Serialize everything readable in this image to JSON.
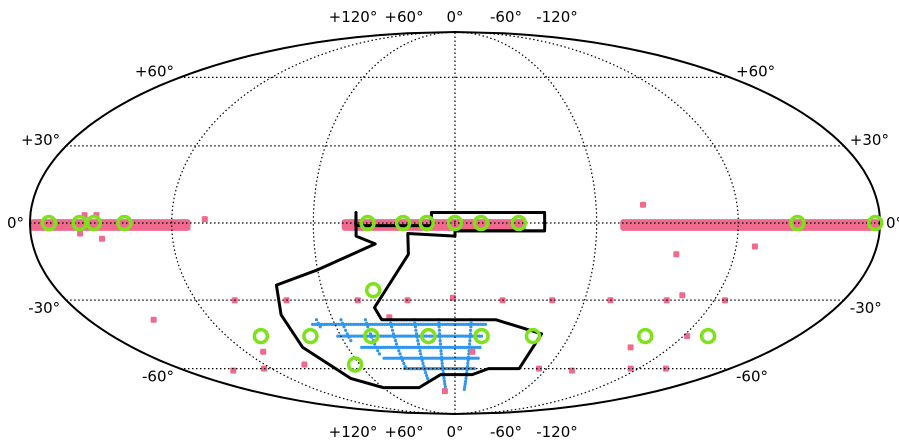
{
  "chart_data": {
    "type": "scatter",
    "projection": "mollweide",
    "grid": true,
    "colors": {
      "survey_a": "#f06a8e",
      "survey_b": "#2f97f0",
      "targets": "#7ee21a",
      "footprint": "#000000",
      "grid": "#000000",
      "background": "#ffffff"
    },
    "lon_ticks_top": [
      {
        "lon": 120,
        "label": "+120°"
      },
      {
        "lon": 60,
        "label": "+60°"
      },
      {
        "lon": 0,
        "label": "0°"
      },
      {
        "lon": -60,
        "label": "-60°"
      },
      {
        "lon": -120,
        "label": "-120°"
      }
    ],
    "lon_ticks_bottom": [
      {
        "lon": 120,
        "label": "+120°"
      },
      {
        "lon": 60,
        "label": "+60°"
      },
      {
        "lon": 0,
        "label": "0°"
      },
      {
        "lon": -60,
        "label": "-60°"
      },
      {
        "lon": -120,
        "label": "-120°"
      }
    ],
    "lat_ticks": [
      {
        "lat": 60,
        "left": "+60°",
        "right": "+60°"
      },
      {
        "lat": 30,
        "left": "+30°",
        "right": "+30°"
      },
      {
        "lat": 0,
        "left": "0°",
        "right": "0°"
      },
      {
        "lat": -30,
        "left": "-30°",
        "right": "-30°"
      },
      {
        "lat": -60,
        "left": "-60°",
        "right": "-60°"
      }
    ],
    "survey_a_band": [
      {
        "lon_from": 180,
        "lon_to": 112,
        "lat_from": -1.5,
        "lat_to": 1.5
      },
      {
        "lon_from": 48,
        "lon_to": -30,
        "lat_from": -1.5,
        "lat_to": 1.5
      },
      {
        "lon_from": -70,
        "lon_to": -180,
        "lat_from": -1.5,
        "lat_to": 1.5
      }
    ],
    "survey_a_points": [
      {
        "lon": 157,
        "lat": 3
      },
      {
        "lon": 152,
        "lat": 3
      },
      {
        "lon": 159,
        "lat": -4
      },
      {
        "lon": 150,
        "lat": -6
      },
      {
        "lon": 106,
        "lat": 1.5
      },
      {
        "lon": -80,
        "lat": 7
      },
      {
        "lon": -95,
        "lat": -12
      },
      {
        "lon": -128,
        "lat": -9
      },
      {
        "lon": 102,
        "lat": -30
      },
      {
        "lon": 78,
        "lat": -30
      },
      {
        "lon": 45,
        "lat": -30
      },
      {
        "lon": 22,
        "lat": -30
      },
      {
        "lon": 1,
        "lat": -29
      },
      {
        "lon": -22,
        "lat": -30
      },
      {
        "lon": -45,
        "lat": -30
      },
      {
        "lon": -72,
        "lat": -30
      },
      {
        "lon": -98,
        "lat": -30
      },
      {
        "lon": -125,
        "lat": -30
      },
      {
        "lon": -104,
        "lat": -28
      },
      {
        "lon": 148,
        "lat": -38
      },
      {
        "lon": 110,
        "lat": -52
      },
      {
        "lon": 125,
        "lat": -60
      },
      {
        "lon": 95,
        "lat": -58
      },
      {
        "lon": 32,
        "lat": -37
      },
      {
        "lon": -10,
        "lat": -52
      },
      {
        "lon": -55,
        "lat": -60
      },
      {
        "lon": -98,
        "lat": -50
      },
      {
        "lon": -122,
        "lat": -45
      },
      {
        "lon": -115,
        "lat": -60
      },
      {
        "lon": -138,
        "lat": -60
      },
      {
        "lon": -78,
        "lat": -61
      },
      {
        "lon": 148,
        "lat": -61
      },
      {
        "lon": 9,
        "lat": -72
      }
    ],
    "targets": [
      {
        "lon": 172,
        "lat": 0
      },
      {
        "lon": 159,
        "lat": 0
      },
      {
        "lon": 153,
        "lat": 0
      },
      {
        "lon": 140,
        "lat": 0
      },
      {
        "lon": 37,
        "lat": 0
      },
      {
        "lon": 22,
        "lat": 0
      },
      {
        "lon": 12,
        "lat": 0
      },
      {
        "lon": 0,
        "lat": 0
      },
      {
        "lon": -11,
        "lat": 0
      },
      {
        "lon": -27,
        "lat": 0
      },
      {
        "lon": -145,
        "lat": 0
      },
      {
        "lon": -178,
        "lat": 0
      },
      {
        "lon": 37,
        "lat": -26
      },
      {
        "lon": 102,
        "lat": -45
      },
      {
        "lon": 76,
        "lat": -45
      },
      {
        "lon": 44,
        "lat": -45
      },
      {
        "lon": 14,
        "lat": -45
      },
      {
        "lon": -14,
        "lat": -45
      },
      {
        "lon": -41,
        "lat": -45
      },
      {
        "lon": -100,
        "lat": -45
      },
      {
        "lon": -133,
        "lat": -45
      },
      {
        "lon": 63,
        "lat": -58
      }
    ],
    "survey_b_grid": {
      "lat_range": [
        -72,
        -38
      ],
      "lon_edges": [
        {
          "lat": -38,
          "from": 75,
          "to": -16
        },
        {
          "lat": -72,
          "from": 10,
          "to": -12
        }
      ],
      "rows": [
        -40,
        -45,
        -50,
        -55,
        -60
      ],
      "cols": [
        68,
        56,
        44,
        32,
        20,
        8,
        -8
      ]
    },
    "footprint": [
      [
        42,
        4
      ],
      [
        42,
        -1
      ],
      [
        10,
        -1
      ],
      [
        10,
        4
      ],
      [
        -38,
        4
      ],
      [
        -38,
        -1
      ],
      [
        -38,
        -3
      ],
      [
        0,
        -3
      ],
      [
        0,
        -5
      ],
      [
        20,
        -4
      ],
      [
        20,
        -12
      ],
      [
        38,
        -33
      ],
      [
        36,
        -38
      ],
      [
        -20,
        -38
      ],
      [
        -45,
        -44
      ],
      [
        -42,
        -60
      ],
      [
        -22,
        -60
      ],
      [
        -12,
        -63
      ],
      [
        10,
        -63
      ],
      [
        30,
        -70
      ],
      [
        60,
        -70
      ],
      [
        76,
        -65
      ],
      [
        85,
        -50
      ],
      [
        84,
        -36
      ],
      [
        80,
        -24
      ],
      [
        60,
        -18
      ],
      [
        34,
        -8
      ],
      [
        42,
        -5
      ],
      [
        42,
        4
      ]
    ],
    "footprint_inner_edge": [
      [
        0,
        -3
      ],
      [
        -38,
        -3
      ]
    ]
  }
}
